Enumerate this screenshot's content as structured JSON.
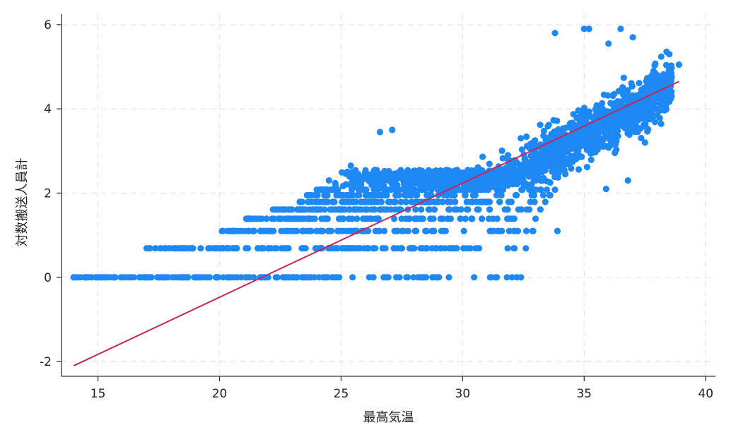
{
  "chart_data": {
    "type": "scatter",
    "title": "",
    "xlabel": "最高気温",
    "ylabel": "対数搬送人員計",
    "xlim": [
      13.5,
      40.4
    ],
    "ylim": [
      -2.35,
      6.25
    ],
    "xticks": [
      15,
      20,
      25,
      30,
      35,
      40
    ],
    "yticks": [
      -2,
      0,
      2,
      4,
      6
    ],
    "grid": true,
    "legend": "none",
    "colors": {
      "points": "#1e88f5",
      "fit_line": "#c8245a",
      "grid": "#e8e8e8",
      "axis": "#333333"
    },
    "series": [
      {
        "kind": "points",
        "bands": [
          {
            "y": 0.0,
            "x_min": 14.0,
            "x_max": 32.4
          },
          {
            "y": 0.69,
            "x_min": 17.0,
            "x_max": 32.6
          },
          {
            "y": 1.1,
            "x_min": 20.1,
            "x_max": 32.9
          },
          {
            "y": 1.39,
            "x_min": 21.1,
            "x_max": 33.0
          },
          {
            "y": 1.61,
            "x_min": 22.2,
            "x_max": 33.2
          },
          {
            "y": 1.79,
            "x_min": 23.3,
            "x_max": 33.4
          },
          {
            "y": 1.95,
            "x_min": 23.6,
            "x_max": 33.6
          },
          {
            "y": 2.08,
            "x_min": 24.0,
            "x_max": 33.8
          }
        ],
        "trend": {
          "intercept": -8.0,
          "slope": 0.325,
          "spread": 0.55,
          "x_from": 24.5,
          "x_to": 38.6,
          "count": 1500
        },
        "extremes": [
          {
            "x": 33.8,
            "y": 5.8
          },
          {
            "x": 35.0,
            "y": 5.9
          },
          {
            "x": 35.2,
            "y": 5.9
          },
          {
            "x": 36.5,
            "y": 5.9
          },
          {
            "x": 37.0,
            "y": 5.7
          },
          {
            "x": 36.0,
            "y": 5.55
          },
          {
            "x": 38.5,
            "y": 5.3
          },
          {
            "x": 38.9,
            "y": 5.05
          },
          {
            "x": 38.0,
            "y": 3.85
          },
          {
            "x": 37.5,
            "y": 3.2
          },
          {
            "x": 36.8,
            "y": 2.3
          },
          {
            "x": 35.9,
            "y": 2.1
          },
          {
            "x": 33.9,
            "y": 1.1
          },
          {
            "x": 26.6,
            "y": 3.45
          },
          {
            "x": 27.1,
            "y": 3.5
          },
          {
            "x": 25.4,
            "y": 2.65
          },
          {
            "x": 24.5,
            "y": 2.3
          }
        ]
      },
      {
        "kind": "fit_line",
        "x": [
          14.0,
          38.9
        ],
        "y": [
          -2.1,
          4.65
        ]
      }
    ]
  }
}
